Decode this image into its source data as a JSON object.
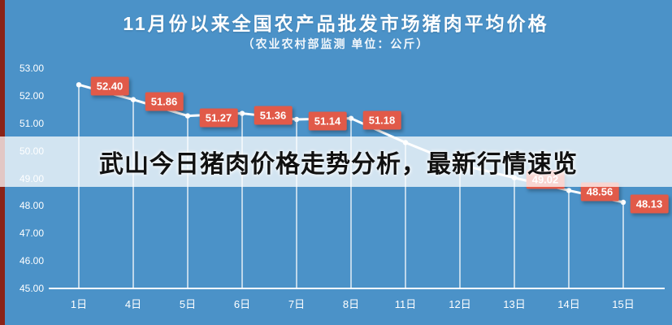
{
  "page": {
    "background_color": "#4b92c8",
    "edge_stripe_color": "#8b2318"
  },
  "overlay": {
    "text": "武山今日猪肉价格走势分析，最新行情速览"
  },
  "chart_data": {
    "type": "line",
    "title": "11月份以来全国农产品批发市场猪肉平均价格",
    "subtitle": "（农业农村部监测 单位：公斤）",
    "categories": [
      "1日",
      "4日",
      "5日",
      "6日",
      "7日",
      "8日",
      "11日",
      "12日",
      "13日",
      "14日",
      "15日"
    ],
    "series": [
      {
        "name": "猪肉平均价格",
        "values": [
          52.4,
          51.86,
          51.27,
          51.36,
          51.14,
          51.18,
          50.3,
          49.5,
          49.02,
          48.56,
          48.13
        ]
      }
    ],
    "data_labels": [
      "52.40",
      "51.86",
      "51.27",
      "51.36",
      "51.14",
      "51.18",
      null,
      null,
      "49.02",
      "48.56",
      "48.13"
    ],
    "ylim": [
      45,
      53
    ],
    "yticks": [
      "53.00",
      "52.00",
      "51.00",
      "50.00",
      "49.00",
      "48.00",
      "47.00",
      "46.00",
      "45.00"
    ],
    "grid": "vertical-drop-lines",
    "legend": "none",
    "line_color": "#ffffff",
    "label_box_color": "#e15a49"
  }
}
